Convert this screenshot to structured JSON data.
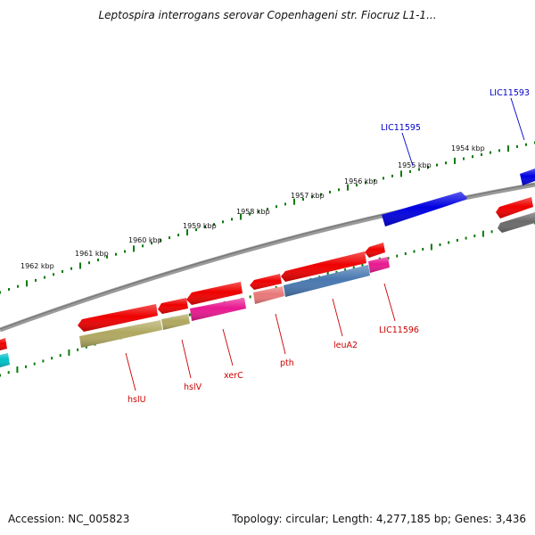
{
  "title": "Leptospira interrogans serovar Copenhageni str. Fiocruz L1-1...",
  "footer": {
    "accession": "Accession: NC_005823",
    "topology": "Topology: circular; Length: 4,277,185 bp; Genes: 3,436"
  },
  "colors": {
    "backbone": "#808080",
    "tick": "#0a7a0a",
    "red": "#ee0000",
    "blue": "#0000e0",
    "olive": "#b0a860",
    "magenta": "#e81890",
    "steelblue": "#4878b0",
    "salmon": "#e87878",
    "gray": "#6a6a6a",
    "cyan": "#00c0c8",
    "label_red": "#cc0000",
    "label_blue": "#0000cc"
  },
  "kbp_marks": [
    "1954 kbp",
    "1955 kbp",
    "1956 kbp",
    "1957 kbp",
    "1958 kbp",
    "1959 kbp",
    "1960 kbp",
    "1961 kbp",
    "1962 kbp"
  ],
  "gene_labels_top": [
    "LIC11593",
    "LIC11595"
  ],
  "gene_labels_bottom": [
    "LIC11596",
    "leuA2",
    "pth",
    "xerC",
    "hslV",
    "hslU"
  ]
}
